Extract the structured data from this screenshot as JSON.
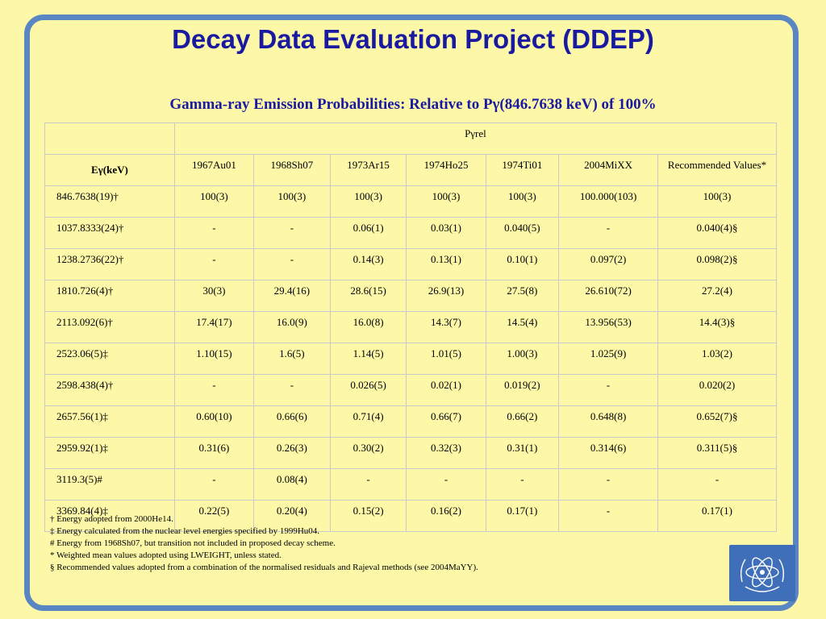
{
  "title": "Decay Data Evaluation Project (DDEP)",
  "subtitle": "Gamma-ray Emission Probabilities: Relative to Pγ(846.7638 keV) of 100%",
  "table": {
    "group_header": "Pγrel",
    "row_header": "Eγ(keV)",
    "columns": [
      "1967Au01",
      "1968Sh07",
      "1973Ar15",
      "1974Ho25",
      "1974Ti01",
      "2004MiXX",
      "Recommended Values*"
    ],
    "rows": [
      {
        "e": "846.7638(19)†",
        "v": [
          "100(3)",
          "100(3)",
          "100(3)",
          "100(3)",
          "100(3)",
          "100.000(103)",
          "100(3)"
        ]
      },
      {
        "e": "1037.8333(24)†",
        "v": [
          "-",
          "-",
          "0.06(1)",
          "0.03(1)",
          "0.040(5)",
          "-",
          "0.040(4)§"
        ]
      },
      {
        "e": "1238.2736(22)†",
        "v": [
          "-",
          "-",
          "0.14(3)",
          "0.13(1)",
          "0.10(1)",
          "0.097(2)",
          "0.098(2)§"
        ]
      },
      {
        "e": "1810.726(4)†",
        "v": [
          "30(3)",
          "29.4(16)",
          "28.6(15)",
          "26.9(13)",
          "27.5(8)",
          "26.610(72)",
          "27.2(4)"
        ]
      },
      {
        "e": "2113.092(6)†",
        "v": [
          "17.4(17)",
          "16.0(9)",
          "16.0(8)",
          "14.3(7)",
          "14.5(4)",
          "13.956(53)",
          "14.4(3)§"
        ]
      },
      {
        "e": "2523.06(5)‡",
        "v": [
          "1.10(15)",
          "1.6(5)",
          "1.14(5)",
          "1.01(5)",
          "1.00(3)",
          "1.025(9)",
          "1.03(2)"
        ]
      },
      {
        "e": "2598.438(4)†",
        "v": [
          "-",
          "-",
          "0.026(5)",
          "0.02(1)",
          "0.019(2)",
          "-",
          "0.020(2)"
        ]
      },
      {
        "e": "2657.56(1)‡",
        "v": [
          "0.60(10)",
          "0.66(6)",
          "0.71(4)",
          "0.66(7)",
          "0.66(2)",
          "0.648(8)",
          "0.652(7)§"
        ]
      },
      {
        "e": "2959.92(1)‡",
        "v": [
          "0.31(6)",
          "0.26(3)",
          "0.30(2)",
          "0.32(3)",
          "0.31(1)",
          "0.314(6)",
          "0.311(5)§"
        ]
      },
      {
        "e": "3119.3(5)#",
        "v": [
          "-",
          "0.08(4)",
          "-",
          "-",
          "-",
          "-",
          "-"
        ]
      },
      {
        "e": "3369.84(4)‡",
        "v": [
          "0.22(5)",
          "0.20(4)",
          "0.15(2)",
          "0.16(2)",
          "0.17(1)",
          "-",
          "0.17(1)"
        ]
      }
    ]
  },
  "footnotes": [
    "† Energy adopted from 2000He14.",
    "‡ Energy calculated from the nuclear level energies specified by 1999Hu04.",
    "# Energy from 1968Sh07, but transition not included in proposed decay scheme.",
    "* Weighted mean values adopted using LWEIGHT, unless stated.",
    "§ Recommended values adopted from a combination of the normalised residuals and Rajeval methods (see 2004MaYY)."
  ],
  "logo": {
    "name": "iaea-logo-icon",
    "color": "#3f6fb8"
  }
}
